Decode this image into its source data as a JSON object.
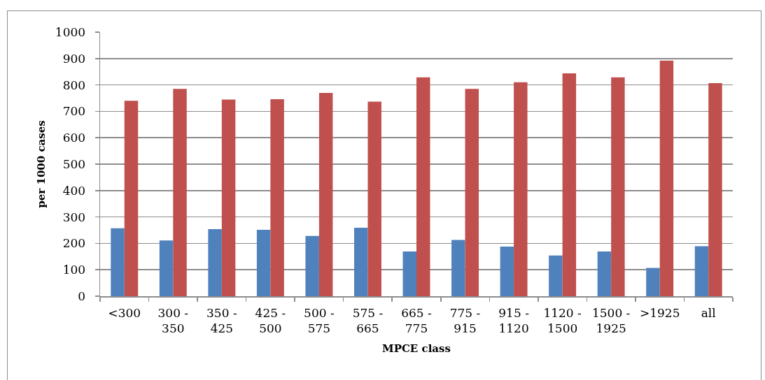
{
  "chart_data": {
    "type": "bar",
    "xlabel": "MPCE class",
    "ylabel": "per 1000 cases",
    "categories": [
      "<300",
      "300 - 350",
      "350 - 425",
      "425 - 500",
      "500 - 575",
      "575 - 665",
      "665 - 775",
      "775 - 915",
      "915 - 1120",
      "1120 - 1500",
      "1500 - 1925",
      ">1925",
      "all"
    ],
    "series": [
      {
        "color": "#4f81bd",
        "values": [
          257,
          211,
          254,
          251,
          228,
          259,
          169,
          213,
          188,
          154,
          169,
          107,
          189
        ]
      },
      {
        "color": "#c0504d",
        "values": [
          740,
          785,
          745,
          746,
          770,
          737,
          829,
          785,
          810,
          844,
          829,
          892,
          807
        ]
      }
    ],
    "ylim": [
      0,
      1000
    ],
    "yticks": [
      0,
      100,
      200,
      300,
      400,
      500,
      600,
      700,
      800,
      900,
      1000
    ],
    "grid": "y"
  }
}
